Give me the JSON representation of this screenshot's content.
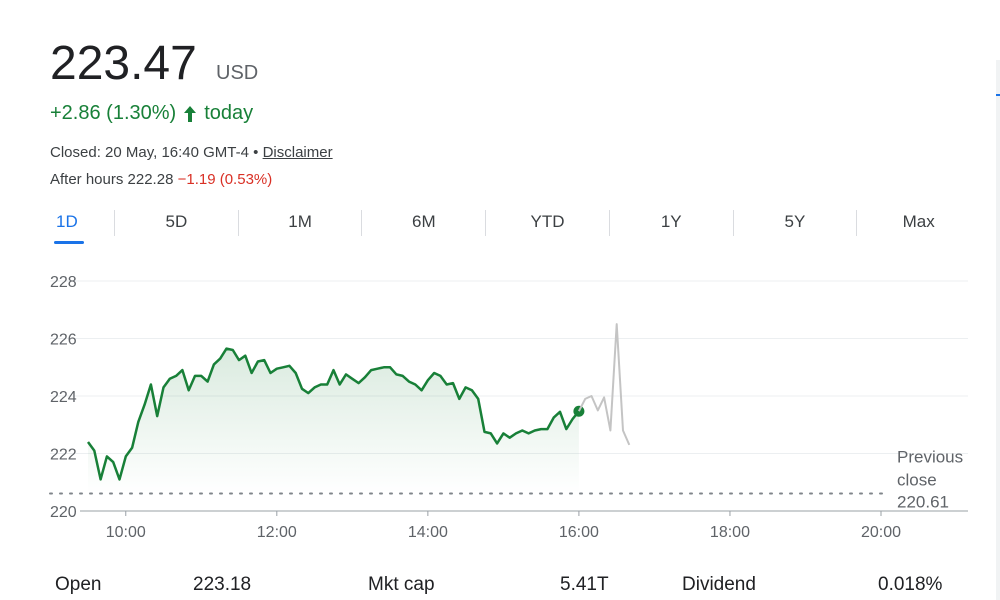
{
  "quote": {
    "price": "223.47",
    "currency": "USD",
    "change": "+2.86 (1.30%)",
    "change_period": "today",
    "closed_label": "Closed: 20 May, 16:40 GMT-4",
    "separator": "•",
    "disclaimer": "Disclaimer",
    "after_hours_label": "After hours 222.28",
    "after_hours_change": "−1.19 (0.53%)"
  },
  "colors": {
    "up": "#188038",
    "down": "#d93025",
    "accent": "#1a73e8",
    "after_hours_line": "#c4c4c4"
  },
  "tabs": [
    {
      "label": "1D",
      "active": true
    },
    {
      "label": "5D"
    },
    {
      "label": "1M"
    },
    {
      "label": "6M"
    },
    {
      "label": "YTD"
    },
    {
      "label": "1Y"
    },
    {
      "label": "5Y"
    },
    {
      "label": "Max"
    }
  ],
  "chart_data": {
    "type": "line",
    "title": "",
    "xlabel": "",
    "ylabel": "",
    "ylim": [
      220,
      228
    ],
    "xlim": [
      "09:30",
      "20:00"
    ],
    "yticks": [
      "228",
      "226",
      "224",
      "222",
      "220"
    ],
    "xticks": [
      "10:00",
      "12:00",
      "14:00",
      "16:00",
      "18:00",
      "20:00"
    ],
    "grid": true,
    "previous_close": {
      "value": 220.61,
      "label": "Previous close",
      "value_label": "220.61"
    },
    "series": [
      {
        "session": "regular",
        "color": "#188038",
        "x": [
          "09:30",
          "09:35",
          "09:40",
          "09:45",
          "09:50",
          "09:55",
          "10:00",
          "10:05",
          "10:10",
          "10:15",
          "10:20",
          "10:25",
          "10:30",
          "10:35",
          "10:40",
          "10:45",
          "10:50",
          "10:55",
          "11:00",
          "11:05",
          "11:10",
          "11:15",
          "11:20",
          "11:25",
          "11:30",
          "11:35",
          "11:40",
          "11:45",
          "11:50",
          "11:55",
          "12:00",
          "12:05",
          "12:10",
          "12:15",
          "12:20",
          "12:25",
          "12:30",
          "12:35",
          "12:40",
          "12:45",
          "12:50",
          "12:55",
          "13:00",
          "13:05",
          "13:10",
          "13:15",
          "13:20",
          "13:25",
          "13:30",
          "13:35",
          "13:40",
          "13:45",
          "13:50",
          "13:55",
          "14:00",
          "14:05",
          "14:10",
          "14:15",
          "14:20",
          "14:25",
          "14:30",
          "14:35",
          "14:40",
          "14:45",
          "14:50",
          "14:55",
          "15:00",
          "15:05",
          "15:10",
          "15:15",
          "15:20",
          "15:25",
          "15:30",
          "15:35",
          "15:40",
          "15:45",
          "15:50",
          "15:55",
          "16:00"
        ],
        "values": [
          222.4,
          222.1,
          221.1,
          221.9,
          221.7,
          221.1,
          221.9,
          222.2,
          223.1,
          223.7,
          224.4,
          223.3,
          224.3,
          224.6,
          224.7,
          224.9,
          224.2,
          224.7,
          224.7,
          224.5,
          225.1,
          225.3,
          225.65,
          225.6,
          225.25,
          225.4,
          224.8,
          225.2,
          225.25,
          224.8,
          224.95,
          225.0,
          225.05,
          224.8,
          224.25,
          224.1,
          224.3,
          224.4,
          224.4,
          224.9,
          224.4,
          224.75,
          224.6,
          224.45,
          224.65,
          224.9,
          224.95,
          225.0,
          225.0,
          224.75,
          224.7,
          224.5,
          224.4,
          224.2,
          224.55,
          224.8,
          224.7,
          224.4,
          224.45,
          223.9,
          224.3,
          224.2,
          223.9,
          222.75,
          222.7,
          222.35,
          222.7,
          222.55,
          222.7,
          222.8,
          222.7,
          222.8,
          222.85,
          222.85,
          223.25,
          223.45,
          222.85,
          223.2,
          223.47
        ]
      },
      {
        "session": "after-hours",
        "color": "#c4c4c4",
        "x": [
          "16:00",
          "16:05",
          "16:10",
          "16:15",
          "16:20",
          "16:25",
          "16:30",
          "16:35",
          "16:40"
        ],
        "values": [
          223.47,
          223.9,
          224.0,
          223.5,
          223.95,
          222.8,
          226.5,
          222.8,
          222.3
        ]
      }
    ]
  },
  "stats": [
    {
      "label": "Open",
      "value": "223.18"
    },
    {
      "label": "Mkt cap",
      "value": "5.41T"
    },
    {
      "label": "Dividend",
      "value": "0.018%"
    }
  ]
}
